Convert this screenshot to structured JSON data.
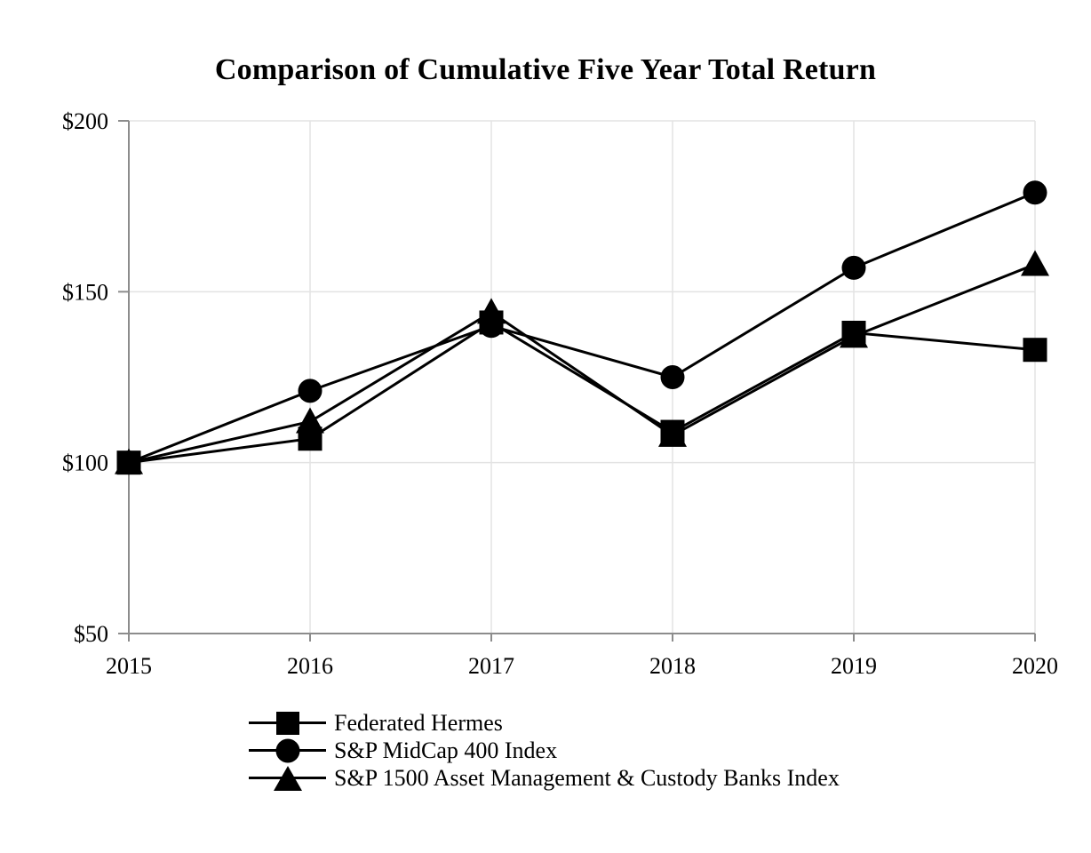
{
  "title": "Comparison of Cumulative Five Year Total Return",
  "chart_data": {
    "type": "line",
    "title": "Comparison of Cumulative Five Year Total Return",
    "categories": [
      "2015",
      "2016",
      "2017",
      "2018",
      "2019",
      "2020"
    ],
    "series": [
      {
        "name": "Federated Hermes",
        "marker": "square",
        "values": [
          100,
          107,
          141,
          109,
          138,
          133
        ]
      },
      {
        "name": "S&P MidCap 400 Index",
        "marker": "circle",
        "values": [
          100,
          121,
          140,
          125,
          157,
          179
        ]
      },
      {
        "name": "S&P 1500 Asset Management & Custody Banks Index",
        "marker": "triangle",
        "values": [
          100,
          112,
          144,
          108,
          137,
          158
        ]
      }
    ],
    "ylim": [
      50,
      200
    ],
    "y_ticks": [
      {
        "value": 200,
        "label": "$200"
      },
      {
        "value": 150,
        "label": "$150"
      },
      {
        "value": 100,
        "label": "$100"
      },
      {
        "value": 50,
        "label": "$50"
      }
    ],
    "grid": true,
    "legend_position": "bottom-left",
    "colors": {
      "series": "#000000",
      "gridline": "#e3e3e3",
      "axis": "#8c8c8c",
      "text": "#000000",
      "background": "#ffffff"
    }
  },
  "legend": {
    "items": [
      {
        "label": "Federated Hermes",
        "marker": "square"
      },
      {
        "label": "S&P MidCap 400 Index",
        "marker": "circle"
      },
      {
        "label": "S&P 1500 Asset Management & Custody Banks Index",
        "marker": "triangle"
      }
    ]
  }
}
